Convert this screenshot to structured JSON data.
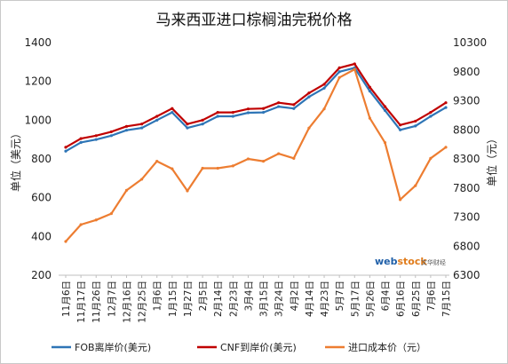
{
  "chart_data": {
    "type": "line",
    "title": "马来西亚进口棕榈油完税价格",
    "ylabel_left": "单位（美元）",
    "ylabel_right": "单位（元）",
    "ylim_left": [
      200,
      1400
    ],
    "ylim_right": [
      6300,
      10300
    ],
    "yticks_left": [
      "200",
      "400",
      "600",
      "800",
      "1000",
      "1200",
      "1400"
    ],
    "yticks_right": [
      "6300",
      "6800",
      "7300",
      "7800",
      "8300",
      "8800",
      "9300",
      "9800",
      "10300"
    ],
    "grid": false,
    "legend_position": "bottom",
    "watermark": {
      "web": "web",
      "stock": "stock",
      "cn": "文华财经"
    },
    "categories": [
      "11月6日",
      "11月17日",
      "11月26日",
      "12月7日",
      "12月16日",
      "12月25日",
      "1月6日",
      "1月15日",
      "1月27日",
      "2月5日",
      "2月14日",
      "2月23日",
      "3月4日",
      "3月15日",
      "3月24日",
      "4月2日",
      "4月14日",
      "4月23日",
      "5月7日",
      "5月17日",
      "5月26日",
      "6月4日",
      "6月16日",
      "6月25日",
      "7月6日",
      "7月15日"
    ],
    "series": [
      {
        "name": "FOB离岸价(美元)",
        "axis": "left",
        "color": "#2e75b6",
        "values": [
          840,
          885,
          900,
          920,
          948,
          960,
          1000,
          1040,
          960,
          980,
          1020,
          1020,
          1038,
          1040,
          1070,
          1060,
          1120,
          1165,
          1250,
          1270,
          1150,
          1050,
          950,
          970,
          1020,
          1065
        ]
      },
      {
        "name": "CNF到岸价(美元)",
        "axis": "left",
        "color": "#c00000",
        "values": [
          860,
          905,
          920,
          940,
          968,
          980,
          1020,
          1060,
          980,
          1000,
          1040,
          1040,
          1058,
          1060,
          1090,
          1080,
          1140,
          1185,
          1270,
          1290,
          1170,
          1070,
          975,
          995,
          1040,
          1090
        ]
      },
      {
        "name": "进口成本价（元）",
        "axis": "right",
        "color": "#ed7d31",
        "values": [
          6880,
          7170,
          7250,
          7360,
          7760,
          7950,
          8260,
          8130,
          7750,
          8140,
          8140,
          8180,
          8300,
          8260,
          8390,
          8310,
          8830,
          9160,
          9700,
          9840,
          9000,
          8580,
          7600,
          7840,
          8310,
          8500
        ]
      }
    ]
  }
}
